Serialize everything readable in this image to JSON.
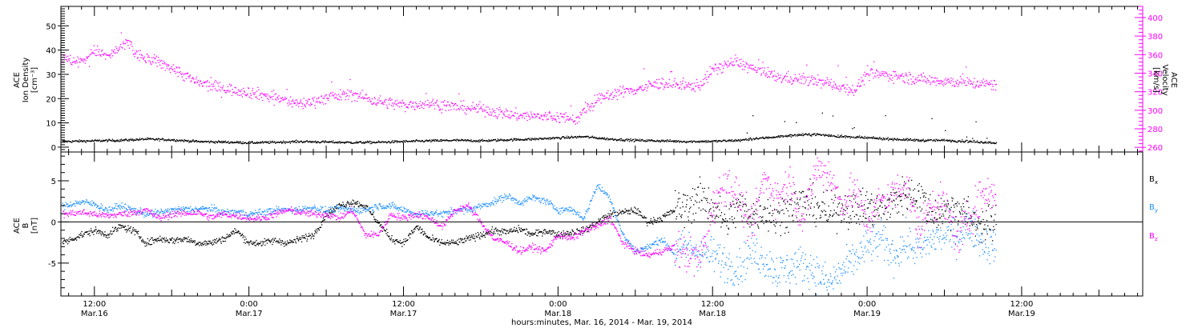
{
  "figure": {
    "bottom_label": "hours:minutes, Mar. 16, 2014 - Mar. 19, 2014"
  },
  "x_axis": {
    "range_hours": [
      -2.6,
      81.4
    ],
    "major_ticks": [
      {
        "hour": 0,
        "time": "12:00",
        "date": "Mar.16"
      },
      {
        "hour": 12,
        "time": "0:00",
        "date": "Mar.17"
      },
      {
        "hour": 24,
        "time": "12:00",
        "date": "Mar.17"
      },
      {
        "hour": 36,
        "time": "0:00",
        "date": "Mar.18"
      },
      {
        "hour": 48,
        "time": "12:00",
        "date": "Mar.18"
      },
      {
        "hour": 60,
        "time": "0:00",
        "date": "Mar.19"
      },
      {
        "hour": 72,
        "time": "12:00",
        "date": "Mar.19"
      }
    ]
  },
  "panel_top": {
    "left_label": [
      "ACE",
      "Ion Density",
      "[cm⁻³]"
    ],
    "right_label": [
      "ACE",
      "Velocity",
      "[km/s]"
    ],
    "left_axis": {
      "range": [
        -2,
        58
      ],
      "ticks": [
        "0",
        "10",
        "20",
        "30",
        "40",
        "50"
      ]
    },
    "right_axis": {
      "range": [
        255,
        412
      ],
      "ticks": [
        "260",
        "280",
        "300",
        "320",
        "340",
        "360",
        "380",
        "400"
      ]
    }
  },
  "panel_bottom": {
    "left_label": [
      "ACE",
      "B",
      "[nT]"
    ],
    "axis": {
      "range": [
        -9,
        8.5
      ],
      "ticks": [
        "-5",
        "0",
        "5"
      ]
    },
    "legend": [
      {
        "main": "B",
        "sub": "x"
      },
      {
        "main": "B",
        "sub": "y"
      },
      {
        "main": "B",
        "sub": "z"
      }
    ]
  },
  "chart_data": [
    {
      "type": "scatter",
      "title": "",
      "xlabel": "hours:minutes, Mar. 16, 2014 - Mar. 19, 2014",
      "ylabel": "ACE Ion Density [cm⁻³]",
      "y2label": "ACE Velocity [km/s]",
      "x_units": "hours since 12:00 Mar.16, 2014",
      "xlim": [
        -2.6,
        81.4
      ],
      "ylim": [
        -2,
        58
      ],
      "y2lim": [
        255,
        412
      ],
      "series": [
        {
          "name": "Ion Density",
          "color": "#000000",
          "axis": "left",
          "x": [
            -2.5,
            0,
            2,
            4,
            6,
            8,
            10,
            12,
            14,
            16,
            18,
            20,
            22,
            24,
            26,
            28,
            30,
            32,
            34,
            36,
            38,
            40,
            42,
            44,
            46,
            48,
            50,
            52,
            54,
            56,
            58,
            60,
            62,
            64,
            66,
            68,
            70
          ],
          "values": [
            2.5,
            2.8,
            3,
            3.5,
            3.2,
            2.5,
            2.3,
            2,
            2.2,
            2.5,
            2.3,
            2.1,
            2.2,
            2.5,
            2.8,
            3,
            2.8,
            3.2,
            3.5,
            4,
            4.5,
            3.5,
            3,
            2.8,
            2.5,
            2.6,
            3,
            4,
            5,
            5.5,
            4.5,
            4,
            3.5,
            3,
            3,
            2.5,
            2
          ]
        },
        {
          "name": "Velocity",
          "color": "#ff00ff",
          "axis": "right",
          "x": [
            -2.5,
            -1,
            0,
            1,
            2,
            2.8,
            3,
            4,
            5,
            6,
            8,
            10,
            12,
            14,
            16,
            18,
            20,
            22,
            24,
            26,
            28,
            30,
            32,
            34,
            36,
            37.5,
            38,
            39,
            40,
            42,
            44,
            46,
            47,
            48,
            49,
            50,
            51,
            52,
            53,
            54,
            56,
            58,
            59,
            60,
            62,
            64,
            66,
            68,
            70
          ],
          "values": [
            355,
            353,
            365,
            358,
            368,
            375,
            362,
            356,
            352,
            346,
            330,
            324,
            320,
            314,
            307,
            314,
            318,
            310,
            306,
            308,
            304,
            302,
            296,
            294,
            293,
            291,
            300,
            310,
            318,
            323,
            330,
            326,
            328,
            344,
            350,
            352,
            346,
            340,
            336,
            335,
            332,
            326,
            322,
            340,
            338,
            334,
            332,
            330,
            328
          ]
        }
      ]
    },
    {
      "type": "scatter",
      "title": "",
      "ylabel": "ACE B [nT]",
      "x_units": "hours since 12:00 Mar.16, 2014",
      "xlim": [
        -2.6,
        81.4
      ],
      "ylim": [
        -9,
        8.5
      ],
      "series": [
        {
          "name": "Bx",
          "color": "#000000",
          "x": [
            -2.5,
            -1,
            0,
            1,
            2,
            3,
            4,
            5,
            6,
            7,
            8,
            9,
            10,
            11,
            12,
            13,
            14,
            15,
            16,
            17,
            18,
            19,
            20,
            21,
            22,
            23,
            24,
            25,
            26,
            27,
            28,
            29,
            30,
            31,
            32,
            33,
            34,
            35,
            36,
            37,
            38,
            39,
            40,
            41,
            42,
            43,
            44,
            45,
            46,
            47,
            48,
            49,
            50,
            51,
            52,
            53,
            54,
            55,
            56,
            57,
            58,
            59,
            60,
            61,
            62,
            63,
            64,
            65,
            66,
            67,
            68,
            69,
            70
          ],
          "values": [
            -2.5,
            -1.5,
            -1,
            -1.5,
            -0.5,
            -1,
            -2.5,
            -2,
            -2.2,
            -2,
            -2.5,
            -2.5,
            -2,
            -1,
            -2.5,
            -2.5,
            -2.2,
            -2.5,
            -2.0,
            -1.5,
            1,
            2,
            2.5,
            2,
            0,
            -2,
            -2.5,
            -0.5,
            -2,
            -2.5,
            -2.5,
            -2,
            -1.5,
            -1.0,
            -1.2,
            -0.8,
            -1.5,
            -1.0,
            -1.5,
            -1.2,
            -1.0,
            0,
            1,
            1.2,
            1.5,
            0,
            0.5,
            1.5,
            2.0,
            3.0,
            2.0,
            0,
            2,
            1,
            1.5,
            0.5,
            2,
            2.5,
            2,
            1,
            2,
            1.5,
            2,
            1.5,
            2.5,
            3.5,
            3.5,
            1,
            1.5,
            2,
            0.5,
            -0.5,
            0
          ]
        },
        {
          "name": "By",
          "color": "#1e90ff",
          "x": [
            -2.5,
            -1,
            0,
            1,
            2,
            3,
            4,
            5,
            6,
            7,
            8,
            9,
            10,
            11,
            12,
            13,
            14,
            15,
            16,
            17,
            18,
            19,
            20,
            21,
            22,
            23,
            24,
            25,
            26,
            27,
            28,
            29,
            30,
            31,
            32,
            33,
            34,
            35,
            36,
            37,
            38,
            39,
            40,
            41,
            42,
            43,
            44,
            45,
            46,
            47,
            48,
            49,
            50,
            51,
            52,
            53,
            54,
            55,
            56,
            57,
            58,
            59,
            60,
            61,
            62,
            63,
            64,
            65,
            66,
            67,
            68,
            69,
            70
          ],
          "values": [
            2,
            2.5,
            2.2,
            1.5,
            2,
            1.5,
            1,
            1.2,
            1.5,
            1.6,
            1.6,
            1.7,
            1.2,
            1.3,
            1,
            1.2,
            1.5,
            1.5,
            1.6,
            1.8,
            1.4,
            1.7,
            1.5,
            1.5,
            2,
            2,
            1.5,
            1.0,
            1.2,
            1.0,
            1.5,
            1.5,
            2.0,
            2.5,
            3.2,
            2.4,
            3.0,
            2.6,
            1.5,
            1.6,
            0.5,
            4.5,
            3.0,
            -1.5,
            -3.5,
            -3.0,
            -2.0,
            -3.8,
            -3.0,
            -3.5,
            -4.0,
            -5.0,
            -5.5,
            -3.5,
            -4.5,
            -6.0,
            -5.5,
            -5.0,
            -6.0,
            -7.5,
            -6.0,
            -4.5,
            -3.0,
            -2.0,
            -4.0,
            -2.5,
            -3.5,
            -2.0,
            -1.5,
            -1.5,
            -0.5,
            -2.5,
            -3.0
          ]
        },
        {
          "name": "Bz",
          "color": "#ff00ff",
          "x": [
            -2.5,
            -1,
            0,
            1,
            2,
            3,
            4,
            5,
            6,
            7,
            8,
            9,
            10,
            11,
            12,
            13,
            14,
            15,
            16,
            17,
            18,
            19,
            20,
            21,
            22,
            23,
            24,
            25,
            26,
            27,
            28,
            29,
            30,
            31,
            32,
            33,
            34,
            35,
            36,
            37,
            38,
            39,
            40,
            41,
            42,
            43,
            44,
            45,
            46,
            47,
            48,
            49,
            50,
            51,
            52,
            53,
            54,
            55,
            56,
            57,
            58,
            59,
            60,
            61,
            62,
            63,
            64,
            65,
            66,
            67,
            68,
            69,
            70
          ],
          "values": [
            1,
            1.2,
            1.0,
            0.8,
            1.0,
            1.2,
            1.5,
            0.5,
            1.0,
            1.1,
            1.2,
            0.6,
            1.0,
            0.8,
            0.5,
            0.5,
            1,
            1.5,
            1.2,
            1.0,
            1.0,
            0.5,
            1.5,
            -1.5,
            -1.5,
            1,
            0.5,
            1.0,
            0.5,
            -0.5,
            1.5,
            2,
            0,
            -2,
            -2.5,
            -3.5,
            -3.0,
            -3.5,
            -1.5,
            -2.0,
            -1.0,
            -0.5,
            0.5,
            -2.5,
            -3.5,
            -4.0,
            -3.5,
            -3.0,
            -4.0,
            -4.5,
            2.0,
            5.0,
            3.0,
            -1.0,
            5.5,
            3.0,
            5.0,
            0,
            6.5,
            6.0,
            2.0,
            4.0,
            0,
            2.5,
            3.5,
            5.0,
            -1.5,
            2.5,
            2.0,
            -2.0,
            1.0,
            3.5,
            3.5
          ]
        }
      ]
    }
  ]
}
